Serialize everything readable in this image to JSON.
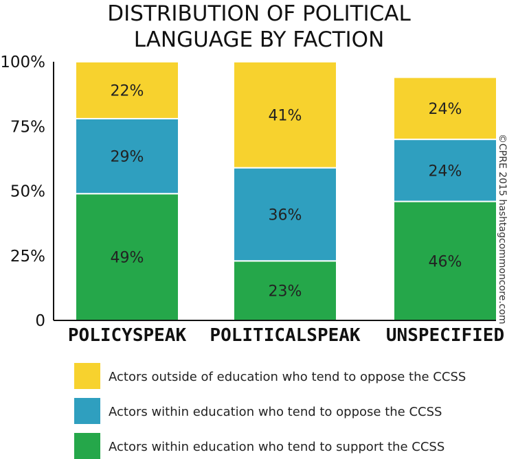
{
  "chart_data": {
    "type": "bar",
    "stacked": true,
    "title_lines": [
      "DISTRIBUTION OF POLITICAL",
      "LANGUAGE BY FACTION"
    ],
    "categories": [
      "POLICYSPEAK",
      "POLITICALSPEAK",
      "UNSPECIFIED"
    ],
    "series": [
      {
        "name": "Actors within education who tend to support the CCSS",
        "color": "#25a74a",
        "values": [
          49,
          23,
          46
        ]
      },
      {
        "name": "Actors within education who tend to oppose the CCSS",
        "color": "#2f9fbf",
        "values": [
          29,
          36,
          24
        ]
      },
      {
        "name": "Actors outside of education who tend to oppose the CCSS",
        "color": "#f7d22e",
        "values": [
          22,
          41,
          24
        ]
      }
    ],
    "yticks": [
      "0",
      "25%",
      "50%",
      "75%",
      "100%"
    ],
    "ylim": [
      0,
      100
    ],
    "value_suffix": "%",
    "legend_order": [
      2,
      1,
      0
    ],
    "legend_position": "bottom",
    "credit": "©CPRE 2015 hashtagcommoncore.com",
    "grid": false
  }
}
